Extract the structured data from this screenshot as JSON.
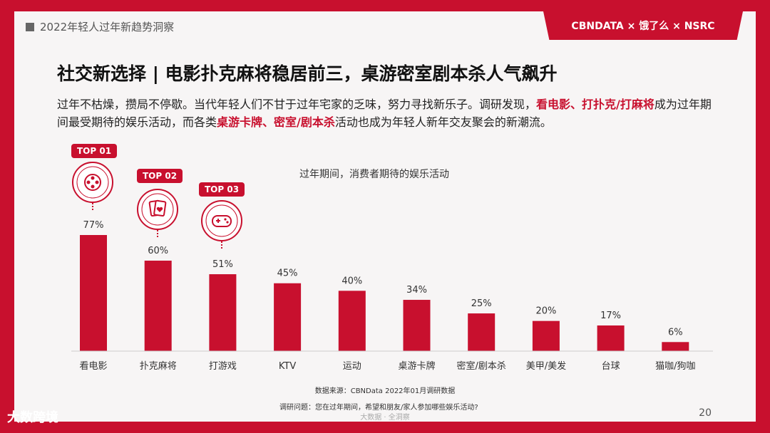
{
  "header": {
    "section": "2022年轻人过年新趋势洞察",
    "logo": "CBNDATA × 饿了么 × NSRC"
  },
  "title": "社交新选择 | 电影扑克麻将稳居前三，桌游密室剧本杀人气飙升",
  "description": {
    "p1": "过年不枯燥，攒局不停歇。当代年轻人们不甘于过年宅家的乏味，努力寻找新乐子。调研发现，",
    "h1": "看电影、打扑克/打麻将",
    "p2": "成为过年期间最受期待的娱乐活动，而各类",
    "h2": "桌游卡牌、密室/剧本杀",
    "p3": "活动也成为年轻人新年交友聚会的新潮流。"
  },
  "badges": [
    "TOP 01",
    "TOP 02",
    "TOP 03"
  ],
  "icons": [
    "film-reel-icon",
    "playing-cards-icon",
    "gamepad-icon"
  ],
  "chart_data": {
    "type": "bar",
    "title": "过年期间，消费者期待的娱乐活动",
    "categories": [
      "看电影",
      "扑克麻将",
      "打游戏",
      "KTV",
      "运动",
      "桌游卡牌",
      "密室/剧本杀",
      "美甲/美发",
      "台球",
      "猫咖/狗咖"
    ],
    "values": [
      77,
      60,
      51,
      45,
      40,
      34,
      25,
      20,
      17,
      6
    ],
    "value_labels": [
      "77%",
      "60%",
      "51%",
      "45%",
      "40%",
      "34%",
      "25%",
      "20%",
      "17%",
      "6%"
    ],
    "xlabel": "",
    "ylabel": "",
    "ylim": [
      0,
      100
    ],
    "grid": false,
    "color": "#c8102e"
  },
  "footer": {
    "source": "数据来源：CBNData 2022年01月调研数据",
    "question": "调研问题：您在过年期间，希望和朋友/家人参加哪些娱乐活动?",
    "watermark": "大数据 · 全洞察",
    "page": "20",
    "brand_watermark": "大数跨境"
  }
}
